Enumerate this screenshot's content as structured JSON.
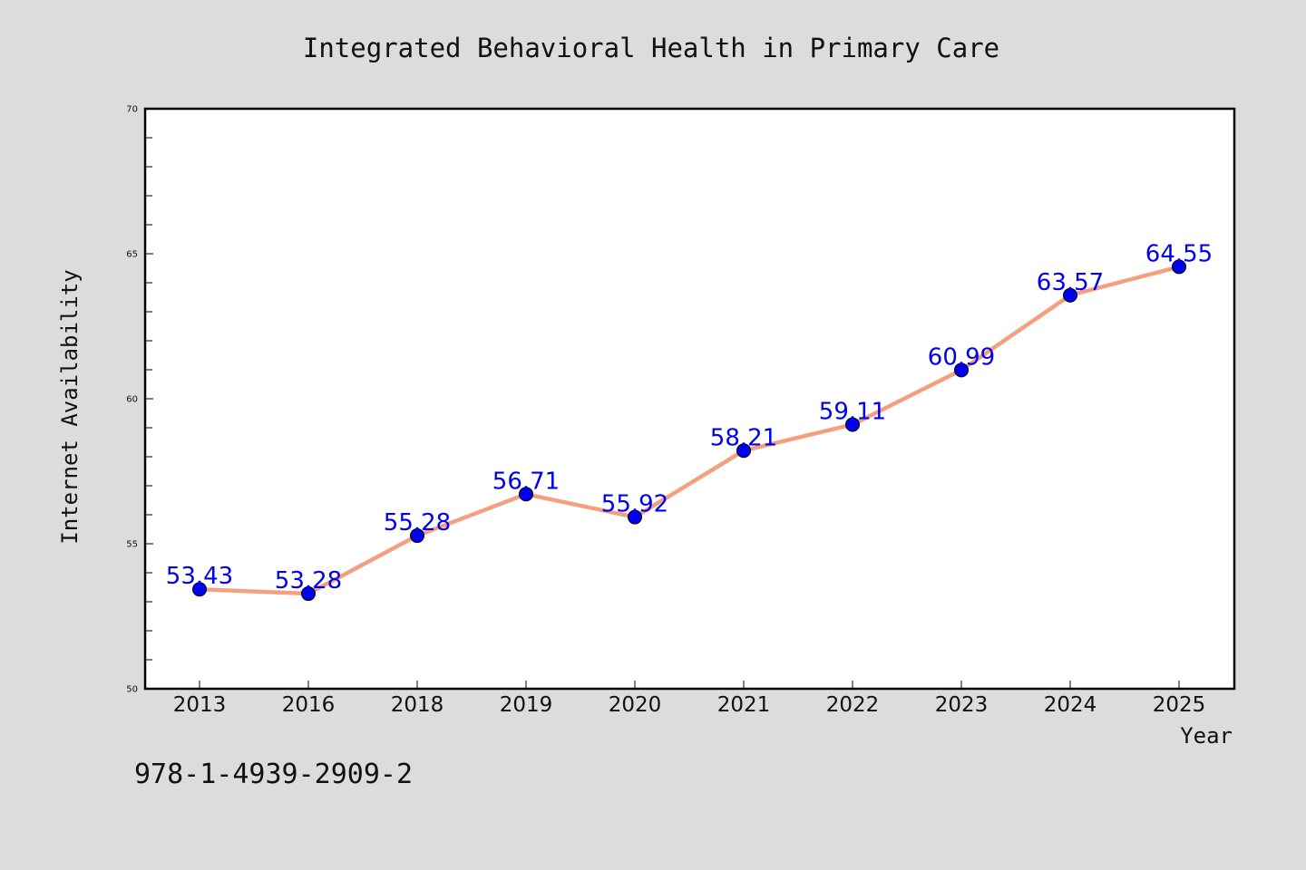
{
  "footer_code": "978-1-4939-2909-2",
  "colors": {
    "background": "#dcdcdc",
    "plot_background": "#ffffff",
    "line": "#f4a080",
    "marker": "#0000ee",
    "label": "#0000ee"
  },
  "chart_data": {
    "type": "line",
    "title": "Integrated Behavioral Health in Primary Care",
    "xlabel": "Year",
    "ylabel": "Internet Availability",
    "ylim": [
      50,
      70
    ],
    "y_major_ticks": [
      50,
      55,
      60,
      65,
      70
    ],
    "y_minor_step": 1,
    "grid": false,
    "legend": "none",
    "categories": [
      "2013",
      "2016",
      "2018",
      "2019",
      "2020",
      "2021",
      "2022",
      "2023",
      "2024",
      "2025"
    ],
    "series": [
      {
        "values": [
          53.43,
          53.28,
          55.28,
          56.71,
          55.92,
          58.21,
          59.11,
          60.99,
          63.57,
          64.55
        ]
      }
    ]
  }
}
